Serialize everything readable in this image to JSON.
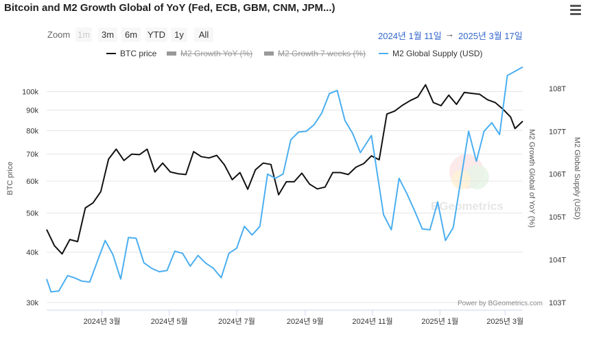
{
  "title": "Bitcoin and M2 Growth Global of YoY (Fed, ECB, GBM, CNM, JPM...)",
  "menu_icon": "hamburger-menu-icon",
  "zoom": {
    "label": "Zoom",
    "buttons": [
      {
        "label": "1m",
        "disabled": true
      },
      {
        "label": "3m",
        "disabled": false
      },
      {
        "label": "6m",
        "disabled": false
      },
      {
        "label": "YTD",
        "disabled": false
      },
      {
        "label": "1y",
        "disabled": false
      },
      {
        "label": "All",
        "disabled": false
      }
    ]
  },
  "date_range": {
    "from": "2024년 1월 11일",
    "arrow": "→",
    "to": "2025년 3월 17일"
  },
  "legend": [
    {
      "name": "BTC price",
      "color": "#111111",
      "hidden": false
    },
    {
      "name": "M2 Growth YoY (%)",
      "color": "#555555",
      "hidden": true
    },
    {
      "name": "M2 Growth 7 weeks (%)",
      "color": "#555555",
      "hidden": true
    },
    {
      "name": "M2 Global Supply (USD)",
      "color": "#4aaef0",
      "hidden": false
    }
  ],
  "credit": "Power by BGeometrics.com",
  "watermark": "BGeometrics",
  "chart_data": {
    "type": "line",
    "x_axis": {
      "type": "datetime",
      "range": [
        "2024-01-11",
        "2025-03-17"
      ],
      "tick_labels": [
        "2024년 3월",
        "2024년 5월",
        "2024년 7월",
        "2024년 9월",
        "2024년 11월",
        "2025년 1월",
        "2025년 3월"
      ],
      "tick_dates": [
        "2024-03-01",
        "2024-05-01",
        "2024-07-01",
        "2024-09-01",
        "2024-11-01",
        "2025-01-01",
        "2025-03-01"
      ]
    },
    "y_axes": [
      {
        "id": "btc",
        "title": "BTC price",
        "side": "left",
        "scale": "log",
        "range": [
          30000,
          120000
        ],
        "tick_labels": [
          "30k",
          "40k",
          "50k",
          "60k",
          "70k",
          "80k",
          "90k",
          "100k"
        ],
        "tick_values": [
          30000,
          40000,
          50000,
          60000,
          70000,
          80000,
          90000,
          100000
        ]
      },
      {
        "id": "m2yoy",
        "title": "M2 Growth Global of YoY (%)",
        "side": "right"
      },
      {
        "id": "m2supply",
        "title": "M2 Global Supply (USD)",
        "side": "right",
        "range": [
          103,
          108.5
        ],
        "tick_labels": [
          "103T",
          "104T",
          "105T",
          "106T",
          "107T",
          "108T"
        ],
        "tick_values": [
          103,
          104,
          105,
          106,
          107,
          108
        ]
      }
    ],
    "grid": true,
    "series": [
      {
        "name": "BTC price",
        "axis": "btc",
        "color": "#111111",
        "points": [
          [
            "2024-01-11",
            45500
          ],
          [
            "2024-01-18",
            41500
          ],
          [
            "2024-01-25",
            39600
          ],
          [
            "2024-02-01",
            43000
          ],
          [
            "2024-02-08",
            42500
          ],
          [
            "2024-02-15",
            51500
          ],
          [
            "2024-02-22",
            53000
          ],
          [
            "2024-02-29",
            56500
          ],
          [
            "2024-03-07",
            68000
          ],
          [
            "2024-03-14",
            72000
          ],
          [
            "2024-03-21",
            67500
          ],
          [
            "2024-03-28",
            70000
          ],
          [
            "2024-04-04",
            69800
          ],
          [
            "2024-04-11",
            72000
          ],
          [
            "2024-04-18",
            63200
          ],
          [
            "2024-04-25",
            66500
          ],
          [
            "2024-05-02",
            63200
          ],
          [
            "2024-05-09",
            62600
          ],
          [
            "2024-05-16",
            62300
          ],
          [
            "2024-05-23",
            71000
          ],
          [
            "2024-05-30",
            69000
          ],
          [
            "2024-06-06",
            68500
          ],
          [
            "2024-06-13",
            69500
          ],
          [
            "2024-06-20",
            65800
          ],
          [
            "2024-06-27",
            60500
          ],
          [
            "2024-07-04",
            63000
          ],
          [
            "2024-07-11",
            57300
          ],
          [
            "2024-07-18",
            64000
          ],
          [
            "2024-07-25",
            66500
          ],
          [
            "2024-08-01",
            66000
          ],
          [
            "2024-08-08",
            55500
          ],
          [
            "2024-08-15",
            59800
          ],
          [
            "2024-08-22",
            59800
          ],
          [
            "2024-08-29",
            62800
          ],
          [
            "2024-09-05",
            59000
          ],
          [
            "2024-09-12",
            57400
          ],
          [
            "2024-09-19",
            58000
          ],
          [
            "2024-09-26",
            63000
          ],
          [
            "2024-10-03",
            63000
          ],
          [
            "2024-10-10",
            62300
          ],
          [
            "2024-10-17",
            65000
          ],
          [
            "2024-10-24",
            66300
          ],
          [
            "2024-10-31",
            69300
          ],
          [
            "2024-11-07",
            67800
          ],
          [
            "2024-11-14",
            88000
          ],
          [
            "2024-11-21",
            89500
          ],
          [
            "2024-11-28",
            92500
          ],
          [
            "2024-12-05",
            95000
          ],
          [
            "2024-12-12",
            97000
          ],
          [
            "2024-12-19",
            104000
          ],
          [
            "2024-12-26",
            94000
          ],
          [
            "2025-01-02",
            92300
          ],
          [
            "2025-01-09",
            98000
          ],
          [
            "2025-01-16",
            93000
          ],
          [
            "2025-01-23",
            99500
          ],
          [
            "2025-01-30",
            99000
          ],
          [
            "2025-02-06",
            98500
          ],
          [
            "2025-02-13",
            95500
          ],
          [
            "2025-02-20",
            94000
          ],
          [
            "2025-02-27",
            90500
          ],
          [
            "2025-03-06",
            86500
          ],
          [
            "2025-03-10",
            81000
          ],
          [
            "2025-03-17",
            84500
          ]
        ]
      },
      {
        "name": "M2 Growth YoY (%)",
        "axis": "m2yoy",
        "color": "#555555",
        "hidden": true,
        "points": []
      },
      {
        "name": "M2 Growth 7 weeks (%)",
        "axis": "m2yoy",
        "color": "#555555",
        "hidden": true,
        "points": []
      },
      {
        "name": "M2 Global Supply (USD)",
        "axis": "m2supply",
        "color": "#4aaef0",
        "points": [
          [
            "2024-01-11",
            103.55
          ],
          [
            "2024-01-15",
            103.25
          ],
          [
            "2024-01-22",
            103.27
          ],
          [
            "2024-01-30",
            103.63
          ],
          [
            "2024-02-05",
            103.58
          ],
          [
            "2024-02-12",
            103.5
          ],
          [
            "2024-02-19",
            103.48
          ],
          [
            "2024-02-26",
            103.97
          ],
          [
            "2024-03-04",
            104.45
          ],
          [
            "2024-03-11",
            104.12
          ],
          [
            "2024-03-18",
            103.55
          ],
          [
            "2024-03-25",
            104.52
          ],
          [
            "2024-04-01",
            104.5
          ],
          [
            "2024-04-08",
            103.93
          ],
          [
            "2024-04-15",
            103.8
          ],
          [
            "2024-04-22",
            103.72
          ],
          [
            "2024-04-29",
            103.75
          ],
          [
            "2024-05-06",
            104.2
          ],
          [
            "2024-05-13",
            104.15
          ],
          [
            "2024-05-20",
            103.85
          ],
          [
            "2024-05-27",
            104.1
          ],
          [
            "2024-06-03",
            103.92
          ],
          [
            "2024-06-10",
            103.8
          ],
          [
            "2024-06-17",
            103.58
          ],
          [
            "2024-06-24",
            104.15
          ],
          [
            "2024-07-01",
            104.27
          ],
          [
            "2024-07-08",
            104.78
          ],
          [
            "2024-07-15",
            104.58
          ],
          [
            "2024-07-22",
            104.78
          ],
          [
            "2024-07-29",
            106.0
          ],
          [
            "2024-08-05",
            105.9
          ],
          [
            "2024-08-12",
            106.0
          ],
          [
            "2024-08-19",
            106.8
          ],
          [
            "2024-08-26",
            106.98
          ],
          [
            "2024-09-02",
            107.0
          ],
          [
            "2024-09-09",
            107.15
          ],
          [
            "2024-09-16",
            107.42
          ],
          [
            "2024-09-23",
            107.88
          ],
          [
            "2024-09-30",
            107.95
          ],
          [
            "2024-10-07",
            107.25
          ],
          [
            "2024-10-14",
            106.95
          ],
          [
            "2024-10-21",
            106.5
          ],
          [
            "2024-10-31",
            106.9
          ],
          [
            "2024-11-11",
            105.05
          ],
          [
            "2024-11-18",
            104.7
          ],
          [
            "2024-11-25",
            105.9
          ],
          [
            "2024-12-02",
            105.55
          ],
          [
            "2024-12-09",
            105.15
          ],
          [
            "2024-12-16",
            104.72
          ],
          [
            "2024-12-23",
            104.7
          ],
          [
            "2024-12-30",
            105.35
          ],
          [
            "2025-01-06",
            104.45
          ],
          [
            "2025-01-13",
            104.75
          ],
          [
            "2025-01-27",
            107.0
          ],
          [
            "2025-02-03",
            106.3
          ],
          [
            "2025-02-10",
            107.0
          ],
          [
            "2025-02-17",
            107.2
          ],
          [
            "2025-02-24",
            106.92
          ],
          [
            "2025-03-03",
            108.3
          ],
          [
            "2025-03-17",
            108.5
          ]
        ]
      }
    ]
  }
}
